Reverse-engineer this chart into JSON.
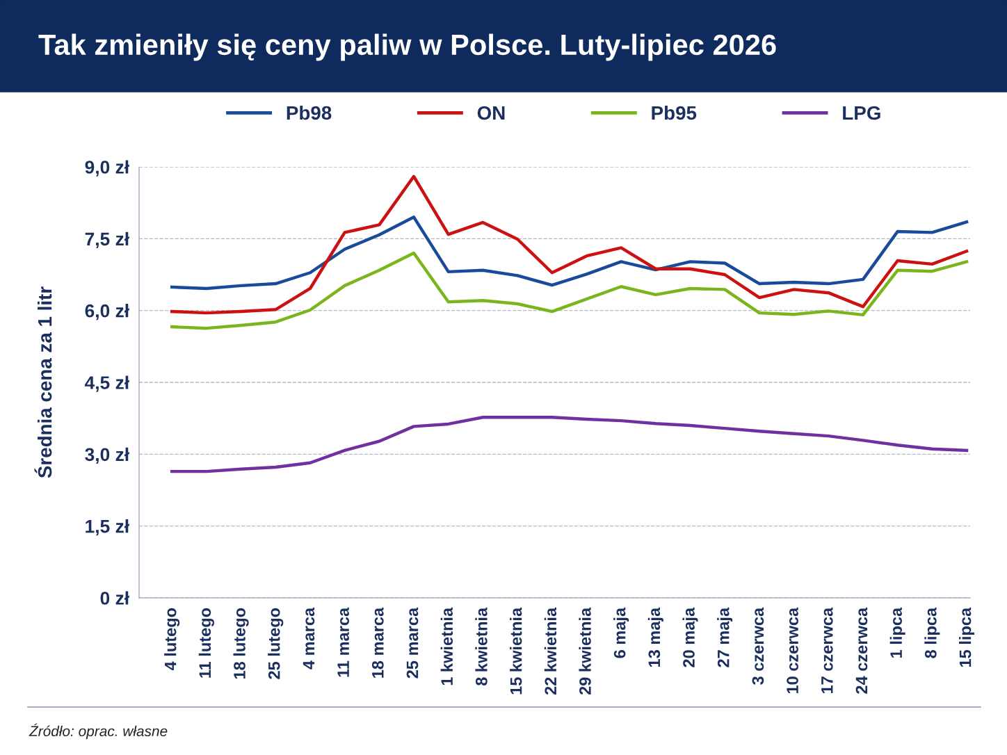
{
  "chart_data": {
    "type": "line",
    "title": "Tak zmieniły się ceny paliw w Polsce. Luty-lipiec 2026",
    "ylabel": "Średnia cena za 1 litr",
    "categories": [
      "4 lutego",
      "11 lutego",
      "18 lutego",
      "25 lutego",
      "4 marca",
      "11 marca",
      "18 marca",
      "25 marca",
      "1 kwietnia",
      "8 kwietnia",
      "15 kwietnia",
      "22 kwietnia",
      "29 kwietnia",
      "6 maja",
      "13 maja",
      "20 maja",
      "27 maja",
      "3 czerwca",
      "10 czerwca",
      "17 czerwca",
      "24 czerwca",
      "1 lipca",
      "8 lipca",
      "15 lipca"
    ],
    "series": [
      {
        "name": "Pb98",
        "color": "#1a4a9a",
        "values": [
          6.49,
          6.46,
          6.52,
          6.56,
          6.79,
          7.28,
          7.58,
          7.95,
          6.81,
          6.84,
          6.73,
          6.53,
          6.76,
          7.02,
          6.85,
          7.02,
          6.99,
          6.56,
          6.59,
          6.56,
          6.65,
          7.65,
          7.63,
          7.85
        ]
      },
      {
        "name": "ON",
        "color": "#cc1111",
        "values": [
          5.98,
          5.95,
          5.98,
          6.02,
          6.46,
          7.63,
          7.79,
          8.8,
          7.59,
          7.84,
          7.49,
          6.79,
          7.14,
          7.31,
          6.87,
          6.87,
          6.75,
          6.27,
          6.44,
          6.37,
          6.08,
          7.04,
          6.97,
          7.24
        ]
      },
      {
        "name": "Pb95",
        "color": "#7ab51d",
        "values": [
          5.66,
          5.63,
          5.69,
          5.76,
          6.01,
          6.52,
          6.84,
          7.2,
          6.18,
          6.21,
          6.14,
          5.98,
          6.24,
          6.5,
          6.33,
          6.46,
          6.44,
          5.95,
          5.92,
          5.99,
          5.91,
          6.84,
          6.82,
          7.02
        ]
      },
      {
        "name": "LPG",
        "color": "#7030a0",
        "values": [
          2.64,
          2.64,
          2.69,
          2.73,
          2.82,
          3.08,
          3.27,
          3.58,
          3.63,
          3.77,
          3.77,
          3.77,
          3.73,
          3.7,
          3.64,
          3.6,
          3.54,
          3.48,
          3.43,
          3.38,
          3.29,
          3.19,
          3.11,
          3.08
        ]
      }
    ],
    "ylim": [
      0,
      9
    ],
    "yticks": [
      {
        "value": 0,
        "label": "0 zł"
      },
      {
        "value": 1.5,
        "label": "1,5 zł"
      },
      {
        "value": 3,
        "label": "3,0 zł"
      },
      {
        "value": 4.5,
        "label": "4,5 zł"
      },
      {
        "value": 6,
        "label": "6,0 zł"
      },
      {
        "value": 7.5,
        "label": "7,5 zł"
      },
      {
        "value": 9,
        "label": "9,0 zł"
      }
    ],
    "grid": "y",
    "legend": "top",
    "marker": "none",
    "line_style": "solid",
    "annotations": [
      "Źródło: oprac. własne"
    ]
  }
}
